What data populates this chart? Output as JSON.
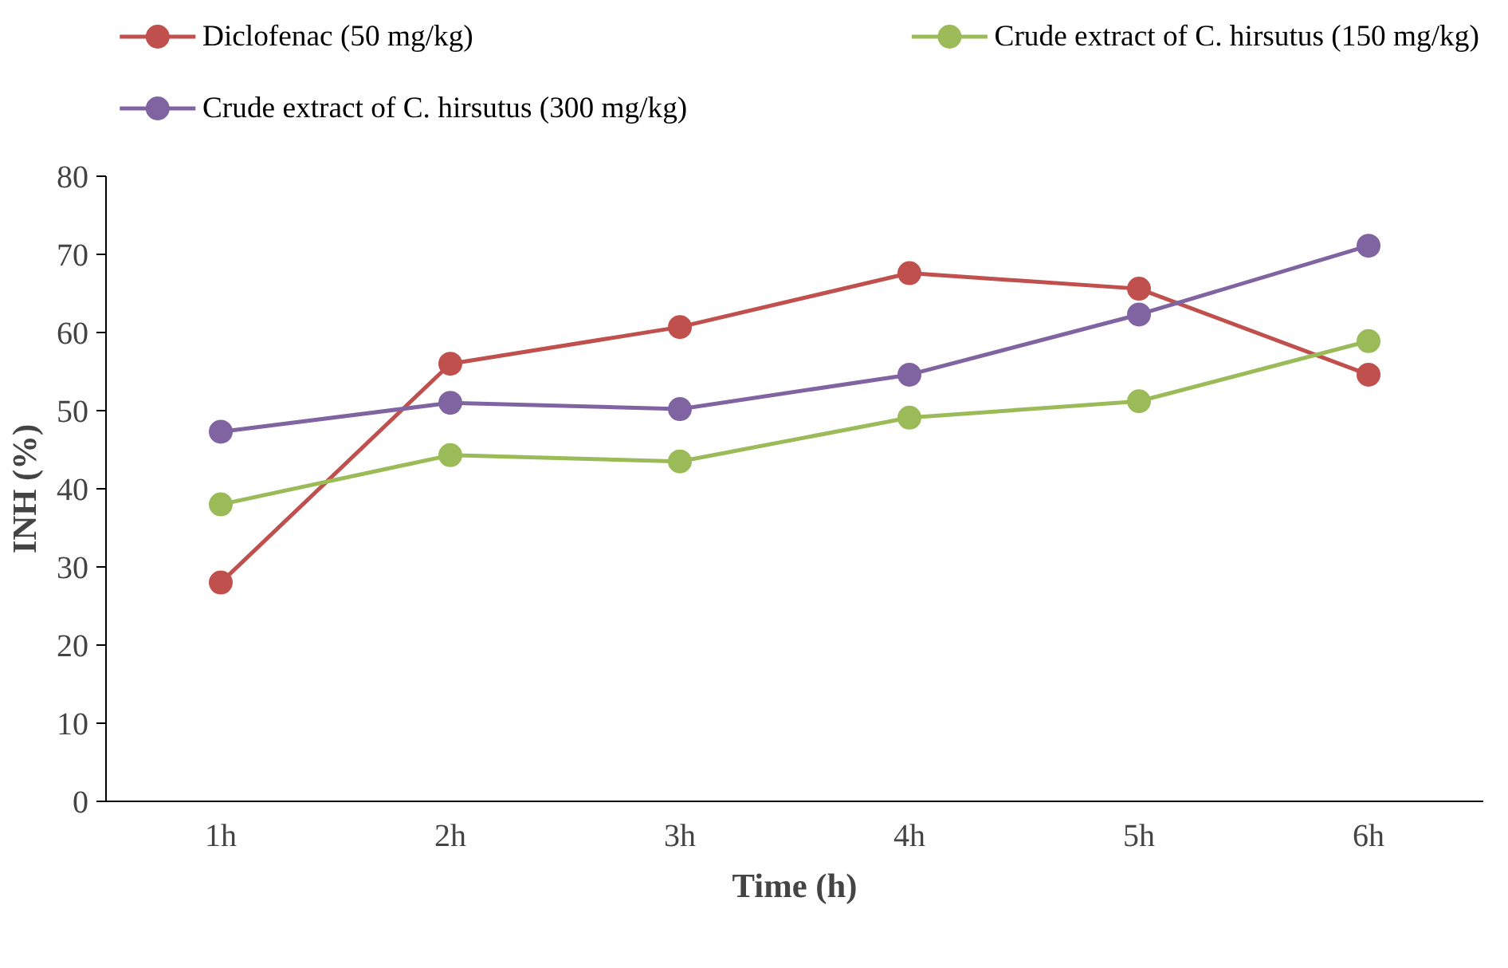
{
  "chart_data": {
    "type": "line",
    "xlabel": "Time (h)",
    "ylabel": "INH (%)",
    "categories": [
      "1h",
      "2h",
      "3h",
      "4h",
      "5h",
      "6h"
    ],
    "series": [
      {
        "name": "Diclofenac (50 mg/kg)",
        "color": "#c0504d",
        "values": [
          28.0,
          56.0,
          60.7,
          67.6,
          65.6,
          54.6
        ]
      },
      {
        "name": "Crude extract of C. hirsutus (150 mg/kg)",
        "color": "#9bbb59",
        "values": [
          38.0,
          44.3,
          43.5,
          49.1,
          51.2,
          58.9
        ]
      },
      {
        "name": "Crude extract of C. hirsutus (300 mg/kg)",
        "color": "#8064a2",
        "values": [
          47.3,
          51.0,
          50.2,
          54.6,
          62.3,
          71.1
        ]
      }
    ],
    "ylim": [
      0,
      80
    ],
    "yticks": [
      0,
      10,
      20,
      30,
      40,
      50,
      60,
      70,
      80
    ],
    "grid": false,
    "legend": "top",
    "marker": "circle",
    "line_style": "solid"
  }
}
